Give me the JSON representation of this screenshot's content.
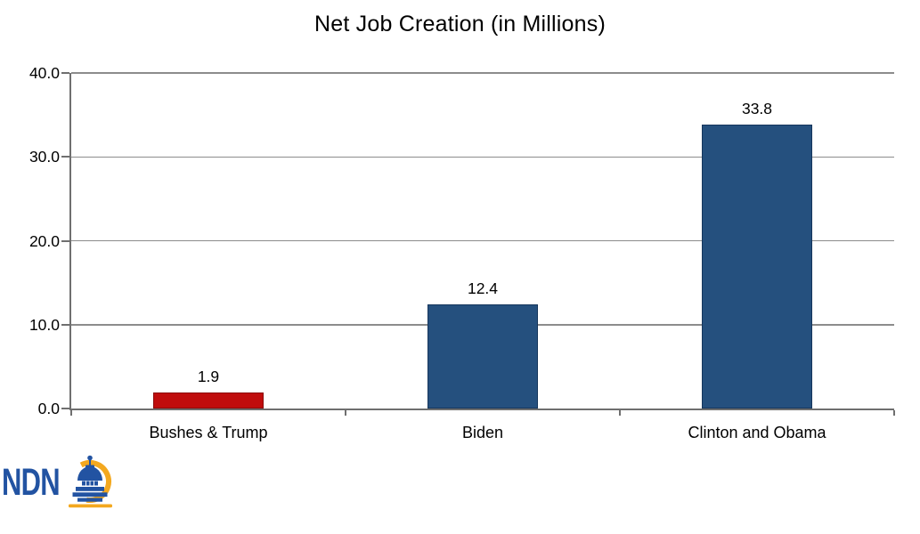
{
  "logo": {
    "text": "NDN",
    "icon": "capitol-dome-icon"
  },
  "colors": {
    "background": "#FFFFFF",
    "text": "#000000",
    "axis": "#6F6F6F",
    "gridline": "#8C8C8C",
    "bar_blue": "#25507E",
    "bar_blue_border": "#16365C",
    "bar_red": "#C00D0D",
    "bar_red_border": "#8C0A0A",
    "logo_blue": "#2253A2",
    "logo_gold": "#F3A81F"
  },
  "chart_data": {
    "type": "bar",
    "title": "Net Job Creation (in Millions)",
    "categories": [
      "Bushes & Trump",
      "Biden",
      "Clinton and Obama"
    ],
    "values": [
      1.9,
      12.4,
      33.8
    ],
    "data_labels": [
      "1.9",
      "12.4",
      "33.8"
    ],
    "bar_colors": [
      "red",
      "blue",
      "blue"
    ],
    "xlabel": "",
    "ylabel": "",
    "ylim": [
      0,
      40
    ],
    "ytick_step": 10,
    "ytick_labels": [
      "0.0",
      "10.0",
      "20.0",
      "30.0",
      "40.0"
    ],
    "grid": true,
    "legend": false
  }
}
